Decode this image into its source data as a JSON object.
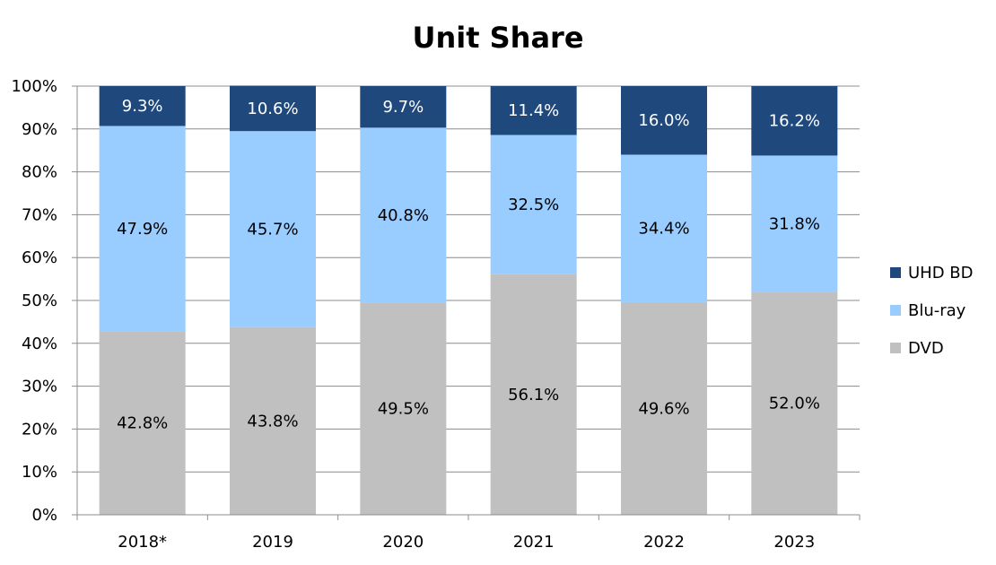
{
  "chart_data": {
    "type": "bar",
    "stacked": true,
    "title": "Unit Share",
    "categories": [
      "2018*",
      "2019",
      "2020",
      "2021",
      "2022",
      "2023"
    ],
    "series": [
      {
        "name": "DVD",
        "color": "#c0c0c0",
        "label_color": "#000000",
        "values": [
          42.8,
          43.8,
          49.5,
          56.1,
          49.6,
          52.0
        ]
      },
      {
        "name": "Blu-ray",
        "color": "#99ccff",
        "label_color": "#000000",
        "values": [
          47.9,
          45.7,
          40.8,
          32.5,
          34.4,
          31.8
        ]
      },
      {
        "name": "UHD BD",
        "color": "#1f497d",
        "label_color": "#ffffff",
        "values": [
          9.3,
          10.6,
          9.7,
          11.4,
          16.0,
          16.2
        ]
      }
    ],
    "ylim": [
      0,
      100
    ],
    "yticks": [
      "0%",
      "10%",
      "20%",
      "30%",
      "40%",
      "50%",
      "60%",
      "70%",
      "80%",
      "90%",
      "100%"
    ],
    "grid": true,
    "legend": "right"
  }
}
